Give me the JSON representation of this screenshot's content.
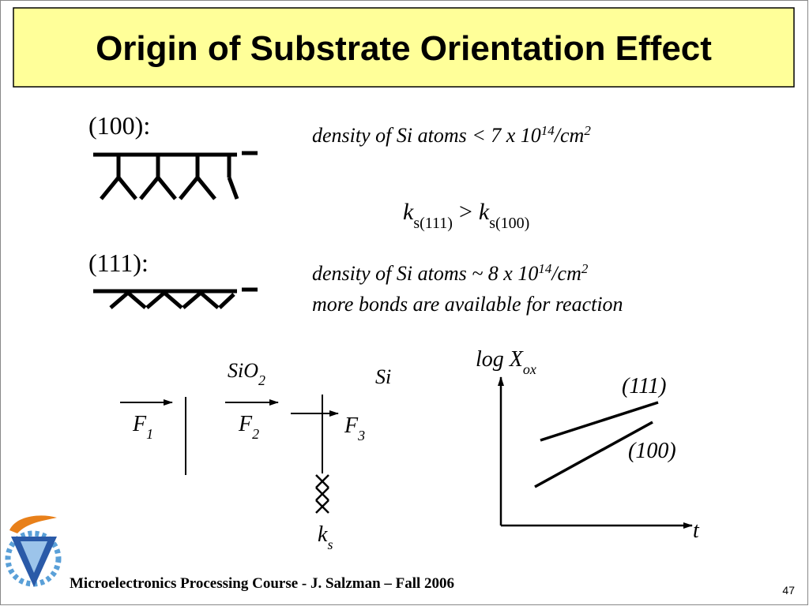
{
  "header": {
    "title": "Origin of Substrate Orientation Effect"
  },
  "orientations": [
    {
      "label": "(100):",
      "density": {
        "text": "density of Si atoms < 7 x 10",
        "exp": "14",
        "unit": "/cm",
        "unit_exp": "2"
      }
    },
    {
      "label": "(111):",
      "density": {
        "text": "density of Si atoms ~ 8 x 10",
        "exp": "14",
        "unit": "/cm",
        "unit_exp": "2"
      },
      "note": "more bonds are available for reaction"
    }
  ],
  "comparison": {
    "left": {
      "symbol": "k",
      "sub": "s(111)"
    },
    "relation": ">",
    "right": {
      "symbol": "k",
      "sub": "s(100)"
    }
  },
  "flux_diagram": {
    "regions": [
      {
        "label": "SiO",
        "sub": "2"
      },
      {
        "label": "Si"
      }
    ],
    "fluxes": [
      {
        "symbol": "F",
        "sub": "1"
      },
      {
        "symbol": "F",
        "sub": "2"
      },
      {
        "symbol": "F",
        "sub": "3"
      }
    ],
    "rate": {
      "symbol": "k",
      "sub": "s"
    }
  },
  "graph": {
    "y_label": {
      "text": "log X",
      "sub": "ox"
    },
    "x_label": "t",
    "lines": [
      "(111)",
      "(100)"
    ]
  },
  "footer": {
    "course": "Microelectronics Processing Course - J. Salzman – Fall 2006",
    "page": "47"
  }
}
